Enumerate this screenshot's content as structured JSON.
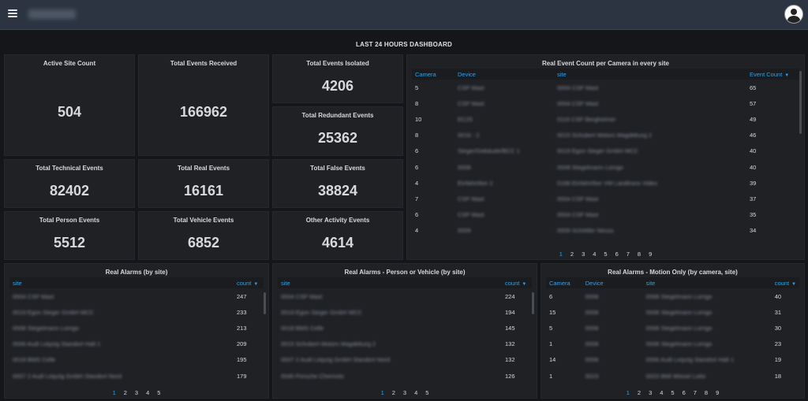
{
  "dashboard_title": "LAST 24 HOURS DASHBOARD",
  "stats": {
    "active_site_count": {
      "label": "Active Site Count",
      "value": "504"
    },
    "total_events_received": {
      "label": "Total Events Received",
      "value": "166962"
    },
    "total_events_isolated": {
      "label": "Total Events Isolated",
      "value": "4206"
    },
    "total_redundant_events": {
      "label": "Total Redundant Events",
      "value": "25362"
    },
    "total_technical_events": {
      "label": "Total Technical Events",
      "value": "82402"
    },
    "total_real_events": {
      "label": "Total Real Events",
      "value": "16161"
    },
    "total_false_events": {
      "label": "Total False Events",
      "value": "38824"
    },
    "total_person_events": {
      "label": "Total Person Events",
      "value": "5512"
    },
    "total_vehicle_events": {
      "label": "Total Vehicle Events",
      "value": "6852"
    },
    "other_activity_events": {
      "label": "Other Activity Events",
      "value": "4614"
    }
  },
  "camera_table": {
    "title": "Real Event Count per Camera in every site",
    "headers": {
      "camera": "Camera",
      "device": "Device",
      "site": "site",
      "count": "Event Count"
    },
    "rows": [
      {
        "camera": "5",
        "device": "CSP Mast",
        "site": "0004 CSP Mast",
        "count": "65"
      },
      {
        "camera": "8",
        "device": "CSP Mast",
        "site": "0004 CSP Mast",
        "count": "57"
      },
      {
        "camera": "10",
        "device": "EC25",
        "site": "0116 CSP Bergheimer",
        "count": "49"
      },
      {
        "camera": "8",
        "device": "0016 - 2",
        "site": "0015 Schubert Motors Magdeburg 2",
        "count": "46"
      },
      {
        "camera": "6",
        "device": "Sieger/Gebäude/BCC 1",
        "site": "0019 Egon Sieger GmbH MCC",
        "count": "40"
      },
      {
        "camera": "6",
        "device": "0008",
        "site": "0008 Stegelmann Lomgo",
        "count": "40"
      },
      {
        "camera": "4",
        "device": "Einfahrt/ker 2",
        "site": "0168 Einfahrt/ker VM Landtrans Video",
        "count": "39"
      },
      {
        "camera": "7",
        "device": "CSP Mast",
        "site": "0004 CSP Mast",
        "count": "37"
      },
      {
        "camera": "6",
        "device": "CSP Mast",
        "site": "0004 CSP Mast",
        "count": "35"
      },
      {
        "camera": "4",
        "device": "0009",
        "site": "0009 Schöttler Neuss",
        "count": "34"
      }
    ],
    "pages": [
      "1",
      "2",
      "3",
      "4",
      "5",
      "6",
      "7",
      "8",
      "9"
    ]
  },
  "alarms_by_site": {
    "title": "Real Alarms (by site)",
    "headers": {
      "site": "site",
      "count": "count"
    },
    "rows": [
      {
        "site": "0004 CSP Mast",
        "count": "247"
      },
      {
        "site": "0019 Egon Sieger GmbH MCC",
        "count": "233"
      },
      {
        "site": "0008 Stegelmann Lomgo",
        "count": "213"
      },
      {
        "site": "0006 Audi Leipzig Standort Halt 1",
        "count": "209"
      },
      {
        "site": "0018 BMS Celle",
        "count": "195"
      },
      {
        "site": "0007 2 Audi Leipzig GmbH Standort Nord",
        "count": "179"
      }
    ],
    "pages": [
      "1",
      "2",
      "3",
      "4",
      "5"
    ]
  },
  "alarms_person_vehicle": {
    "title": "Real Alarms - Person or Vehicle (by site)",
    "headers": {
      "site": "site",
      "count": "count"
    },
    "rows": [
      {
        "site": "0004 CSP Mast",
        "count": "224"
      },
      {
        "site": "0019 Egon Sieger GmbH MCC",
        "count": "194"
      },
      {
        "site": "0018 BMS Celle",
        "count": "145"
      },
      {
        "site": "0015 Schubert Motors Magdeburg 2",
        "count": "132"
      },
      {
        "site": "0007 2 Audi Leipzig GmbH Standort Nord",
        "count": "132"
      },
      {
        "site": "0040 Porsche Chemnitz",
        "count": "126"
      }
    ],
    "pages": [
      "1",
      "2",
      "3",
      "4",
      "5"
    ]
  },
  "alarms_motion": {
    "title": "Real Alarms - Motion Only (by camera, site)",
    "headers": {
      "camera": "Camera",
      "device": "Device",
      "site": "site",
      "count": "count"
    },
    "rows": [
      {
        "camera": "6",
        "device": "0008",
        "site": "0008 Stegelmann Lomgo",
        "count": "40"
      },
      {
        "camera": "15",
        "device": "0008",
        "site": "0008 Stegelmann Lomgo",
        "count": "31"
      },
      {
        "camera": "5",
        "device": "0008",
        "site": "0008 Stegelmann Lomgo",
        "count": "30"
      },
      {
        "camera": "1",
        "device": "0008",
        "site": "0008 Stegelmann Lomgo",
        "count": "23"
      },
      {
        "camera": "14",
        "device": "0006",
        "site": "0006 Audi Leipzig Standort Halt 1",
        "count": "19"
      },
      {
        "camera": "1",
        "device": "0023",
        "site": "0023 BMI Wiesel Lotto",
        "count": "18"
      }
    ],
    "pages": [
      "1",
      "2",
      "3",
      "4",
      "5",
      "6",
      "7",
      "8",
      "9"
    ]
  },
  "icons": {
    "menu": "hamburger-menu-icon",
    "avatar": "user-avatar-icon",
    "sort": "sort-desc-icon"
  },
  "colors": {
    "accent": "#33a2e5",
    "panel": "#1f2125",
    "background": "#141619",
    "topbar": "#2b3440"
  }
}
